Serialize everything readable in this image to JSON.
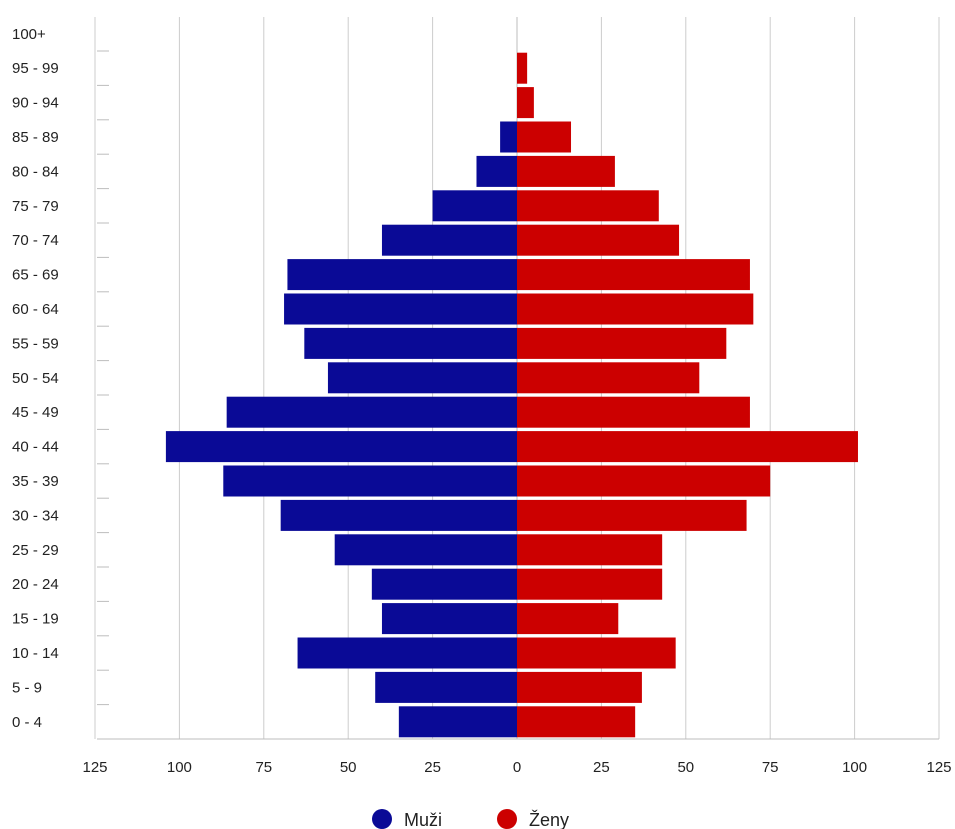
{
  "chart_data": {
    "type": "bar",
    "orientation": "horizontal-population-pyramid",
    "categories": [
      "0 - 4",
      "5 - 9",
      "10 - 14",
      "15 - 19",
      "20 - 24",
      "25 - 29",
      "30 - 34",
      "35 - 39",
      "40 - 44",
      "45 - 49",
      "50 - 54",
      "55 - 59",
      "60 - 64",
      "65 - 69",
      "70 - 74",
      "75 - 79",
      "80 - 84",
      "85 - 89",
      "90 - 94",
      "95 - 99",
      "100+"
    ],
    "series": [
      {
        "name": "Muži",
        "color": "#0a0a96",
        "side": "left",
        "values": [
          35,
          42,
          65,
          40,
          43,
          54,
          70,
          87,
          104,
          86,
          56,
          63,
          69,
          68,
          40,
          25,
          12,
          5,
          0,
          0,
          0
        ]
      },
      {
        "name": "Ženy",
        "color": "#cc0000",
        "side": "right",
        "values": [
          35,
          37,
          47,
          30,
          43,
          43,
          68,
          75,
          101,
          69,
          54,
          62,
          70,
          69,
          48,
          42,
          29,
          16,
          5,
          3,
          0
        ]
      }
    ],
    "x_ticks": [
      "125",
      "100",
      "75",
      "50",
      "25",
      "0",
      "25",
      "50",
      "75",
      "100",
      "125"
    ],
    "xlim": [
      -125,
      125
    ],
    "grid": true,
    "legend_position": "bottom",
    "title": "",
    "xlabel": "",
    "ylabel": ""
  }
}
